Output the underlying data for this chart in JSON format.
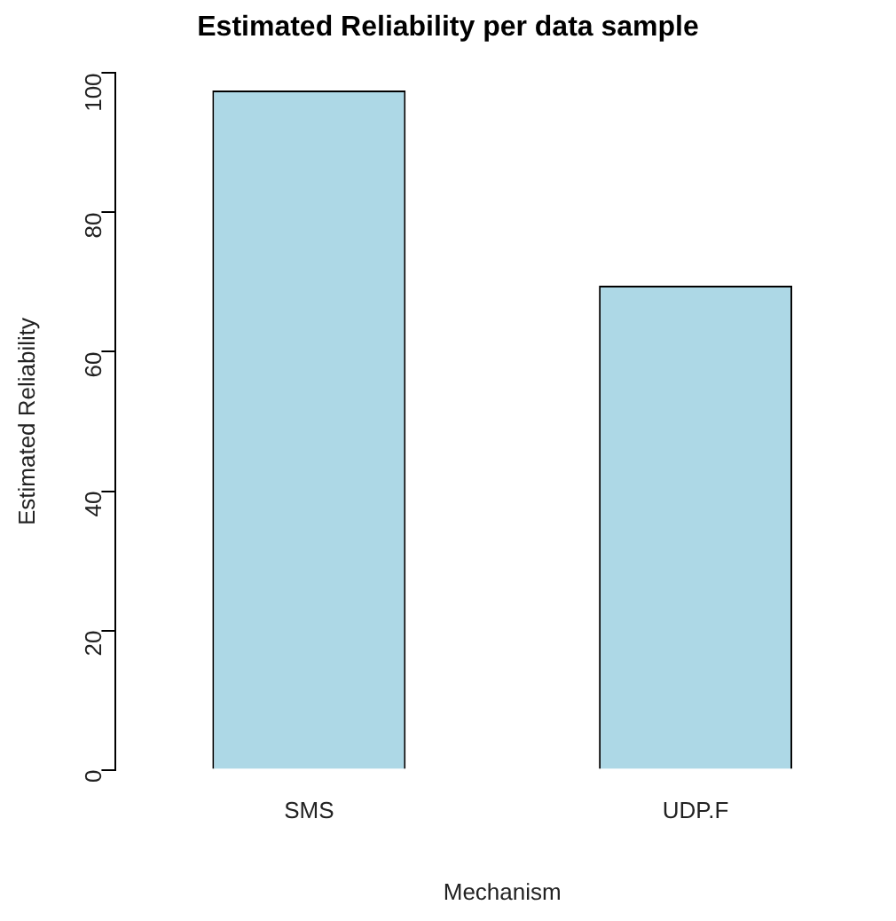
{
  "chart_data": {
    "type": "bar",
    "title": "Estimated Reliability per data sample",
    "xlabel": "Mechanism",
    "ylabel": "Estimated Reliability",
    "categories": [
      "SMS",
      "UDP.F"
    ],
    "values": [
      97.5,
      69.5
    ],
    "color": "#add8e6",
    "ylim": [
      0,
      100
    ],
    "yticks": [
      0,
      20,
      40,
      60,
      80,
      100
    ],
    "grid": false,
    "legend": false
  }
}
